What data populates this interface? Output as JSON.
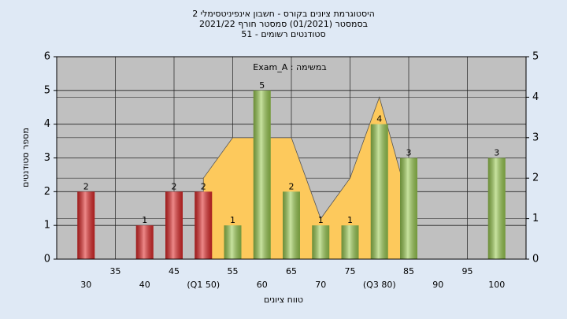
{
  "chart_data": {
    "type": "bar",
    "title": [
      "היסטוגרמת ציונים בקורס - חשבון אינפיניטסימלי 2",
      "בסמסטר  (01/2021)  סמסטר חורף 2021/22",
      "51 - סטודנטים רשומים"
    ],
    "annotation": "Exam_A : במשימה",
    "x_label": "טווח ציונים",
    "y_label": "מספר סטודנטים",
    "x": [
      30,
      35,
      40,
      45,
      50,
      55,
      60,
      65,
      70,
      75,
      80,
      85,
      90,
      95,
      100
    ],
    "xlim": [
      25,
      105
    ],
    "xticks": [
      30,
      35,
      40,
      45,
      {
        "value": 50,
        "label": "(Q1 50)"
      },
      55,
      60,
      65,
      70,
      75,
      {
        "value": 80,
        "label": "(Q3 80)"
      },
      85,
      90,
      95,
      100
    ],
    "ylim": [
      0,
      6
    ],
    "yticks": [
      0,
      1,
      2,
      3,
      4,
      5,
      6
    ],
    "y2lim": [
      0,
      5
    ],
    "y2ticks": [
      0,
      1,
      2,
      3,
      4,
      5
    ],
    "grid": true,
    "series": [
      {
        "type": "area",
        "axis": "y2",
        "color": "#fdc95c",
        "x": [
          50,
          55,
          60,
          65,
          70,
          75,
          80,
          85
        ],
        "values": [
          2,
          3,
          3,
          3,
          1,
          2,
          4,
          1.4
        ]
      },
      {
        "type": "bar",
        "values": [
          2,
          null,
          1,
          2,
          2,
          1,
          5,
          2,
          1,
          1,
          4,
          3,
          null,
          null,
          3
        ],
        "colors": [
          "#e02828",
          null,
          "#e02828",
          "#e02828",
          "#e02828",
          "#9bcc52",
          "#9bcc52",
          "#9bcc52",
          "#9bcc52",
          "#9bcc52",
          "#9bcc52",
          "#9bcc52",
          null,
          null,
          "#9bcc52"
        ]
      }
    ]
  }
}
